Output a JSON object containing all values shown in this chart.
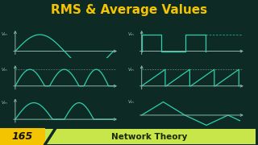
{
  "bg_color": "#0d2b24",
  "title": "RMS & Average Values",
  "title_color": "#f5c400",
  "title_fontsize": 11,
  "wave_color": "#2ecfb0",
  "axis_color": "#8ab8aa",
  "label_color": "#9ac8b8",
  "label_fontsize": 4.0,
  "bottom_bar_yellow": "#f5c400",
  "bottom_bar_green": "#c8e64a",
  "bottom_text": "Network Theory",
  "bottom_num": "165",
  "fig_width": 3.2,
  "fig_height": 1.8,
  "dpi": 100
}
